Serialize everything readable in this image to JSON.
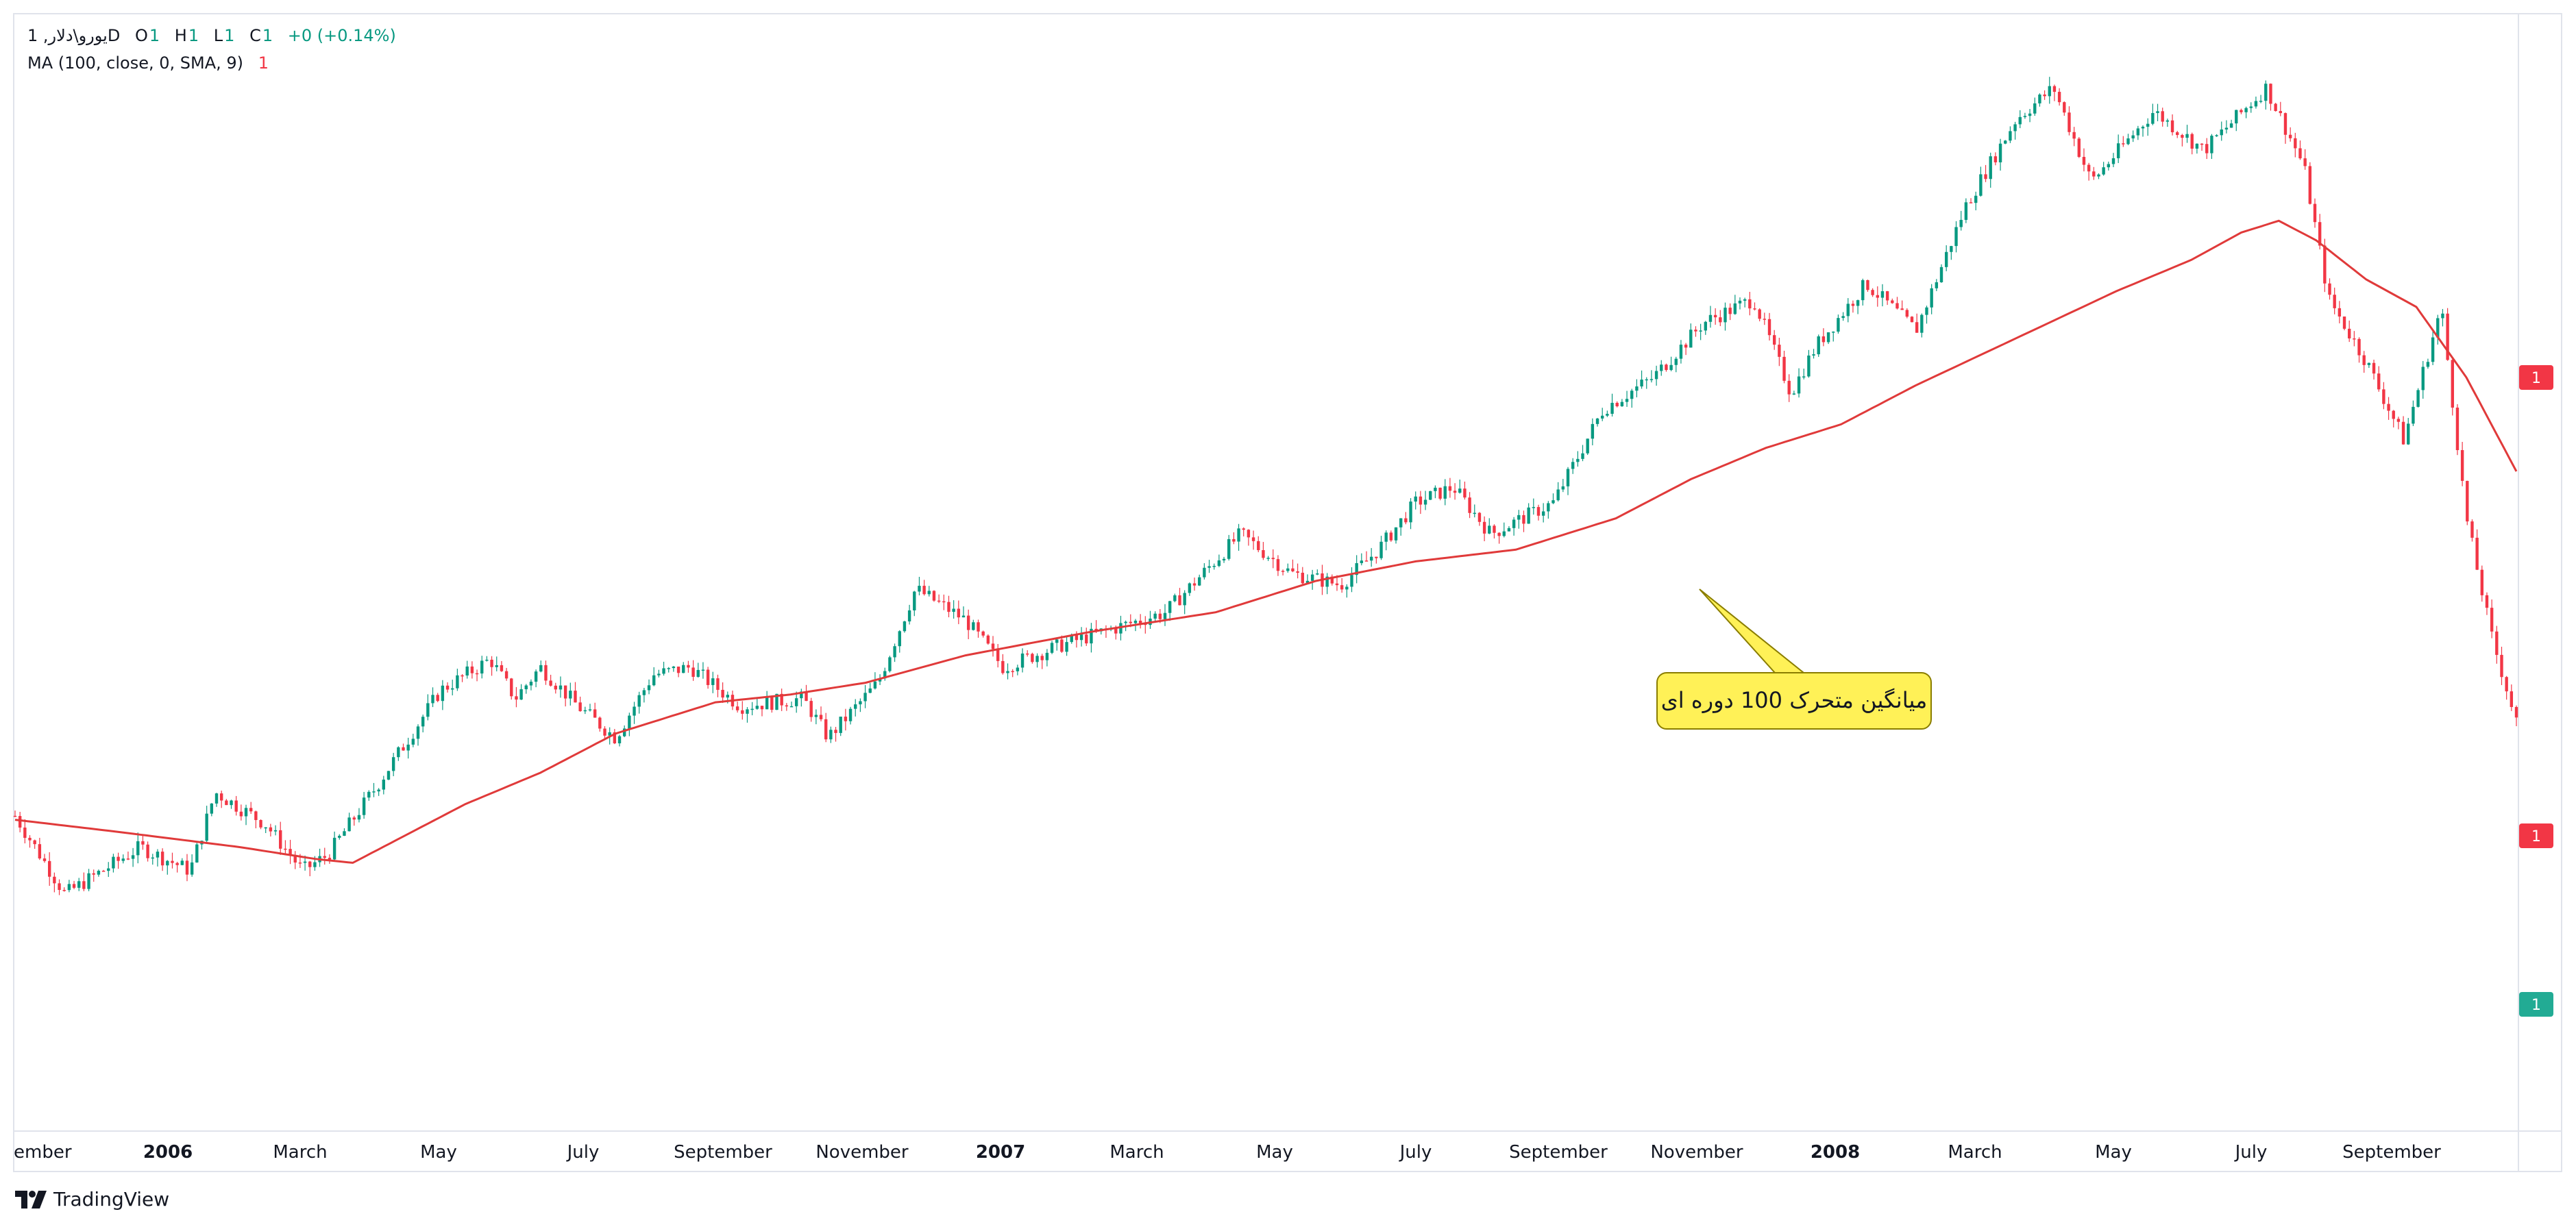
{
  "header": {
    "symbol": "یورو\\دلار, 1D",
    "o_label": "O",
    "o_value": "1",
    "h_label": "H",
    "h_value": "1",
    "l_label": "L",
    "l_value": "1",
    "c_label": "C",
    "c_value": "1",
    "change": "+0 (+0.14%)",
    "indicator": "MA (100, close, 0, SMA, 9)",
    "indicator_value": "1"
  },
  "annotation": {
    "text": "میانگین متحرک 100 دوره ای"
  },
  "price_badges": [
    {
      "text": "1",
      "color": "#f23645"
    },
    {
      "text": "1",
      "color": "#f23645"
    },
    {
      "text": "1",
      "color": "#22ab94"
    }
  ],
  "watermark": {
    "text": "TradingView"
  },
  "colors": {
    "up": "#089981",
    "down": "#f23645",
    "ma": "#e03a3a",
    "callout": "#fff157"
  },
  "chart_data": {
    "type": "candlestick",
    "title": "",
    "xlabel": "",
    "ylabel": "",
    "x_tick_labels": [
      "ember",
      "2006",
      "March",
      "May",
      "July",
      "September",
      "November",
      "2007",
      "March",
      "May",
      "July",
      "September",
      "November",
      "2008",
      "March",
      "May",
      "July",
      "September"
    ],
    "series": [
      {
        "name": "MA (100, close, 0, SMA, 9)",
        "type": "line",
        "anchors": [
          [
            0,
            0.395
          ],
          [
            0.04,
            0.38
          ],
          [
            0.09,
            0.36
          ],
          [
            0.12,
            0.345
          ],
          [
            0.135,
            0.34
          ],
          [
            0.15,
            0.365
          ],
          [
            0.18,
            0.415
          ],
          [
            0.21,
            0.455
          ],
          [
            0.24,
            0.505
          ],
          [
            0.28,
            0.545
          ],
          [
            0.31,
            0.555
          ],
          [
            0.34,
            0.57
          ],
          [
            0.38,
            0.605
          ],
          [
            0.43,
            0.635
          ],
          [
            0.48,
            0.66
          ],
          [
            0.52,
            0.7
          ],
          [
            0.56,
            0.725
          ],
          [
            0.6,
            0.74
          ],
          [
            0.64,
            0.78
          ],
          [
            0.67,
            0.83
          ],
          [
            0.7,
            0.87
          ],
          [
            0.73,
            0.9
          ],
          [
            0.76,
            0.95
          ],
          [
            0.8,
            1.01
          ],
          [
            0.84,
            1.07
          ],
          [
            0.87,
            1.11
          ],
          [
            0.89,
            1.145
          ],
          [
            0.905,
            1.16
          ],
          [
            0.92,
            1.135
          ],
          [
            0.94,
            1.085
          ],
          [
            0.96,
            1.05
          ],
          [
            0.98,
            0.96
          ],
          [
            1.0,
            0.84
          ]
        ]
      },
      {
        "name": "price",
        "type": "candle",
        "anchors": [
          [
            0,
            0.4
          ],
          [
            0.02,
            0.3
          ],
          [
            0.05,
            0.36
          ],
          [
            0.07,
            0.33
          ],
          [
            0.08,
            0.43
          ],
          [
            0.1,
            0.39
          ],
          [
            0.115,
            0.33
          ],
          [
            0.125,
            0.35
          ],
          [
            0.145,
            0.44
          ],
          [
            0.17,
            0.56
          ],
          [
            0.19,
            0.6
          ],
          [
            0.2,
            0.55
          ],
          [
            0.21,
            0.59
          ],
          [
            0.225,
            0.54
          ],
          [
            0.24,
            0.5
          ],
          [
            0.255,
            0.58
          ],
          [
            0.27,
            0.59
          ],
          [
            0.29,
            0.54
          ],
          [
            0.315,
            0.55
          ],
          [
            0.325,
            0.5
          ],
          [
            0.345,
            0.57
          ],
          [
            0.36,
            0.69
          ],
          [
            0.38,
            0.65
          ],
          [
            0.395,
            0.59
          ],
          [
            0.42,
            0.62
          ],
          [
            0.44,
            0.64
          ],
          [
            0.46,
            0.66
          ],
          [
            0.49,
            0.76
          ],
          [
            0.51,
            0.71
          ],
          [
            0.53,
            0.695
          ],
          [
            0.545,
            0.74
          ],
          [
            0.56,
            0.8
          ],
          [
            0.575,
            0.82
          ],
          [
            0.59,
            0.76
          ],
          [
            0.615,
            0.8
          ],
          [
            0.635,
            0.92
          ],
          [
            0.655,
            0.96
          ],
          [
            0.675,
            1.03
          ],
          [
            0.695,
            1.06
          ],
          [
            0.71,
            0.94
          ],
          [
            0.72,
            1.0
          ],
          [
            0.74,
            1.08
          ],
          [
            0.76,
            1.02
          ],
          [
            0.78,
            1.18
          ],
          [
            0.8,
            1.29
          ],
          [
            0.815,
            1.33
          ],
          [
            0.83,
            1.21
          ],
          [
            0.855,
            1.3
          ],
          [
            0.875,
            1.25
          ],
          [
            0.9,
            1.33
          ],
          [
            0.915,
            1.23
          ],
          [
            0.925,
            1.06
          ],
          [
            0.94,
            0.98
          ],
          [
            0.955,
            0.88
          ],
          [
            0.97,
            1.05
          ],
          [
            0.98,
            0.78
          ],
          [
            0.99,
            0.63
          ],
          [
            1.0,
            0.52
          ]
        ]
      }
    ],
    "ylim": [
      0,
      1.4
    ],
    "grid": false,
    "legend": "top-left"
  }
}
